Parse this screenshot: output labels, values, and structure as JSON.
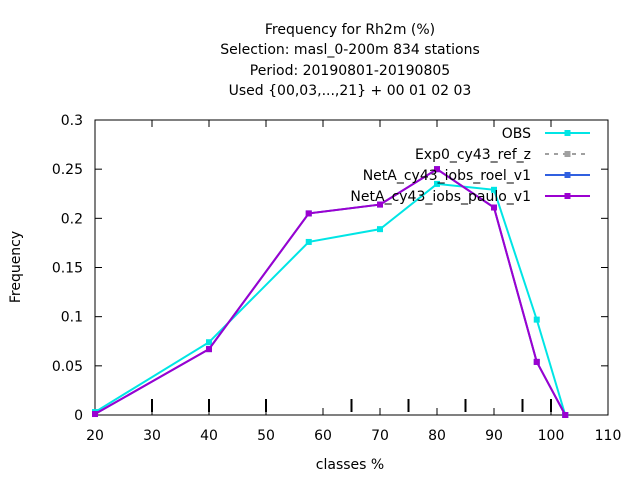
{
  "chart_data": {
    "type": "line",
    "title_lines": [
      "Frequency  for Rh2m (%)",
      "Selection: masl_0-200m    834 stations",
      "Period: 20190801-20190805",
      "Used {00,03,...,21} + 00 01 02 03"
    ],
    "xlabel": "classes %",
    "ylabel": "Frequency",
    "xlim": [
      20,
      110
    ],
    "ylim": [
      0,
      0.3
    ],
    "x_ticks": [
      "20",
      "30",
      "40",
      "50",
      "60",
      "70",
      "80",
      "90",
      "100",
      "110"
    ],
    "y_ticks": [
      "0",
      "0.05",
      "0.1",
      "0.15",
      "0.2",
      "0.25",
      "0.3"
    ],
    "x_tick_values": [
      20,
      30,
      40,
      50,
      60,
      70,
      80,
      90,
      100,
      110
    ],
    "y_tick_values": [
      0,
      0.05,
      0.1,
      0.15,
      0.2,
      0.25,
      0.3
    ],
    "inner_bar_marks": [
      30,
      40,
      50,
      65,
      75,
      85,
      95,
      100
    ],
    "legend_position": "top-right",
    "grid": false,
    "series": [
      {
        "name": "OBS",
        "color": "#00e5e5",
        "style": "solid",
        "x": [
          20,
          40,
          57.5,
          70,
          80,
          90,
          97.5,
          102.5
        ],
        "values": [
          0.003,
          0.074,
          0.176,
          0.189,
          0.235,
          0.229,
          0.097,
          0.0
        ]
      },
      {
        "name": "Exp0_cy43_ref_z",
        "color": "#a0a0a0",
        "style": "dashed",
        "x": [],
        "values": []
      },
      {
        "name": "NetA_cy43_iobs_roel_v1",
        "color": "#3060e0",
        "style": "solid",
        "x": [
          20,
          40,
          57.5,
          70,
          80,
          90,
          97.5,
          102.5
        ],
        "values": [
          0.001,
          0.067,
          0.205,
          0.214,
          0.25,
          0.211,
          0.054,
          0.0
        ]
      },
      {
        "name": "NetA_cy43_iobs_paulo_v1",
        "color": "#9b00d0",
        "style": "solid",
        "x": [
          20,
          40,
          57.5,
          70,
          80,
          90,
          97.5,
          102.5
        ],
        "values": [
          0.001,
          0.067,
          0.205,
          0.214,
          0.25,
          0.211,
          0.054,
          0.0
        ]
      }
    ]
  }
}
